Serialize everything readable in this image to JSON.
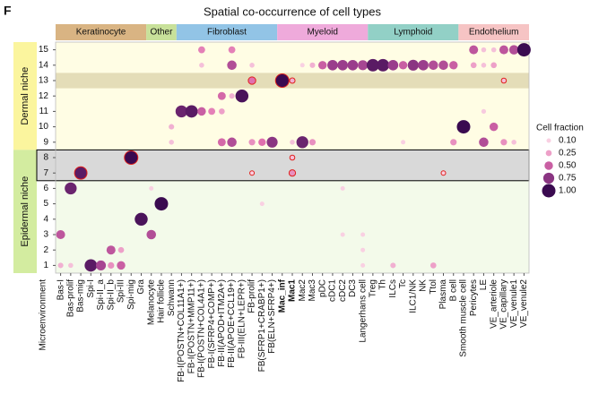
{
  "chart_data": {
    "type": "dot",
    "panel_label": "F",
    "title": "Spatial co-occurrence of cell types",
    "x_label": "Microenvironment",
    "categories": [
      "Bas-I",
      "Bas-prolif",
      "Bas-mig",
      "Spi-I",
      "Spi-II_a",
      "Spi-II_b",
      "Spi-III",
      "Spi-mig",
      "Gra",
      "Melanocyte",
      "Hair follicle",
      "Schwann",
      "FB-I(POSTN+COL11A1+)",
      "FB-I(POSTN+MMP11+)",
      "FB-I(POSTN+COL4A1+)",
      "FB-I(SFRP4+COMP+)",
      "FB-II(APOD+ITM2A+)",
      "FB-II(APOE+CCL19+)",
      "FB-III(ELN+LEPR+)",
      "FB-prolif",
      "FB(SFRP1+CRABP1+)",
      "FB(ELN+SFRP4+)",
      "Mac_inf",
      "Mac1",
      "Mac2",
      "Mac3",
      "pDC",
      "cDC1",
      "cDC2",
      "DC3",
      "Langerhans cell",
      "Treg",
      "Th",
      "ILCs",
      "Tc",
      "ILC1/NK",
      "NK",
      "Ttol",
      "Plasma",
      "B cell",
      "Smooth muscle cell",
      "Pericytes",
      "LE",
      "VE_arteriole",
      "VE_capillary",
      "VE_venule1",
      "VE_venule2"
    ],
    "bold_categories": [
      "Mac_inf",
      "Mac1"
    ],
    "groups": [
      {
        "label": "Keratinocyte",
        "from": "Bas-I",
        "to": "Gra",
        "color": "#d9b483"
      },
      {
        "label": "Other",
        "from": "Melanocyte",
        "to": "Schwann",
        "color": "#c8e19a"
      },
      {
        "label": "Fibroblast",
        "from": "FB-I(POSTN+COL11A1+)",
        "to": "FB(ELN+SFRP4+)",
        "color": "#92c4e6"
      },
      {
        "label": "Myeloid",
        "from": "Mac_inf",
        "to": "Langerhans cell",
        "color": "#efaadb"
      },
      {
        "label": "Lymphoid",
        "from": "Treg",
        "to": "B cell",
        "color": "#92d0c6"
      },
      {
        "label": "Endothelium",
        "from": "Smooth muscle cell",
        "to": "VE_venule2",
        "color": "#f6c4c4"
      }
    ],
    "niches": [
      {
        "label": "Dermal niche",
        "rows": [
          9,
          15
        ],
        "color": "#fbf59e",
        "background": "#fffde4"
      },
      {
        "label": "Epidermal niche",
        "rows": [
          1,
          8
        ],
        "color": "#d3eca0",
        "background": "#f3faea"
      }
    ],
    "highlight_bands": [
      {
        "rows": [
          13,
          13
        ],
        "color": "#e4ddb8",
        "border": false
      },
      {
        "rows": [
          7,
          8
        ],
        "color": "#d9d9d9",
        "border": true,
        "label_color": "#e0201b"
      }
    ],
    "ylim": [
      0.5,
      15.5
    ],
    "yticks": [
      1,
      2,
      3,
      4,
      5,
      6,
      7,
      8,
      9,
      10,
      11,
      12,
      13,
      14,
      15
    ],
    "legend_title": "Cell fraction",
    "legend_ticks": [
      {
        "value": 0.1,
        "label": "0.10"
      },
      {
        "value": 0.25,
        "label": "0.25"
      },
      {
        "value": 0.5,
        "label": "0.50"
      },
      {
        "value": 0.75,
        "label": "0.75"
      },
      {
        "value": 1.0,
        "label": "1.00"
      }
    ],
    "color_scale": [
      "#f9d0e2",
      "#e070ae",
      "#9a3d8c",
      "#3a0a50"
    ],
    "outline_color": "#e0201b",
    "points": [
      {
        "x": "FB-I(POSTN+COL4A1+)",
        "y": 15,
        "fraction": 0.35
      },
      {
        "x": "FB-II(APOE+CCL19+)",
        "y": 15,
        "fraction": 0.35
      },
      {
        "x": "Pericytes",
        "y": 15,
        "fraction": 0.55
      },
      {
        "x": "LE",
        "y": 15,
        "fraction": 0.15
      },
      {
        "x": "VE_arteriole",
        "y": 15,
        "fraction": 0.15
      },
      {
        "x": "VE_capillary",
        "y": 15,
        "fraction": 0.55
      },
      {
        "x": "VE_venule1",
        "y": 15,
        "fraction": 0.6
      },
      {
        "x": "VE_venule2",
        "y": 15,
        "fraction": 1.0
      },
      {
        "x": "FB-I(POSTN+COL4A1+)",
        "y": 14,
        "fraction": 0.15
      },
      {
        "x": "FB-II(APOE+CCL19+)",
        "y": 14,
        "fraction": 0.6
      },
      {
        "x": "FB-prolif",
        "y": 14,
        "fraction": 0.15
      },
      {
        "x": "Mac2",
        "y": 14,
        "fraction": 0.1
      },
      {
        "x": "Mac3",
        "y": 14,
        "fraction": 0.2
      },
      {
        "x": "pDC",
        "y": 14,
        "fraction": 0.5
      },
      {
        "x": "cDC1",
        "y": 14,
        "fraction": 0.7
      },
      {
        "x": "cDC2",
        "y": 14,
        "fraction": 0.7
      },
      {
        "x": "DC3",
        "y": 14,
        "fraction": 0.7
      },
      {
        "x": "Langerhans cell",
        "y": 14,
        "fraction": 0.65
      },
      {
        "x": "Treg",
        "y": 14,
        "fraction": 0.9
      },
      {
        "x": "Th",
        "y": 14,
        "fraction": 0.9
      },
      {
        "x": "ILCs",
        "y": 14,
        "fraction": 0.7
      },
      {
        "x": "Tc",
        "y": 14,
        "fraction": 0.5
      },
      {
        "x": "ILC1/NK",
        "y": 14,
        "fraction": 0.75
      },
      {
        "x": "NK",
        "y": 14,
        "fraction": 0.7
      },
      {
        "x": "Ttol",
        "y": 14,
        "fraction": 0.6
      },
      {
        "x": "Plasma",
        "y": 14,
        "fraction": 0.6
      },
      {
        "x": "B cell",
        "y": 14,
        "fraction": 0.5
      },
      {
        "x": "Pericytes",
        "y": 14,
        "fraction": 0.25
      },
      {
        "x": "LE",
        "y": 14,
        "fraction": 0.15
      },
      {
        "x": "VE_arteriole",
        "y": 14,
        "fraction": 0.25
      },
      {
        "x": "FB-prolif",
        "y": 13,
        "fraction": 0.4,
        "outlined": true
      },
      {
        "x": "Mac_inf",
        "y": 13,
        "fraction": 1.0,
        "outlined": true
      },
      {
        "x": "Mac1",
        "y": 13,
        "fraction": 0.2,
        "outlined": true
      },
      {
        "x": "VE_capillary",
        "y": 13,
        "fraction": 0.15,
        "outlined": true
      },
      {
        "x": "FB-II(APOD+ITM2A+)",
        "y": 12,
        "fraction": 0.45
      },
      {
        "x": "FB-II(APOE+CCL19+)",
        "y": 12,
        "fraction": 0.2
      },
      {
        "x": "FB-III(ELN+LEPR+)",
        "y": 12,
        "fraction": 0.95
      },
      {
        "x": "FB-I(POSTN+COL11A1+)",
        "y": 11,
        "fraction": 0.85
      },
      {
        "x": "FB-I(POSTN+MMP11+)",
        "y": 11,
        "fraction": 0.9
      },
      {
        "x": "FB-I(POSTN+COL4A1+)",
        "y": 11,
        "fraction": 0.5
      },
      {
        "x": "FB-I(SFRP4+COMP+)",
        "y": 11,
        "fraction": 0.35
      },
      {
        "x": "FB-II(APOD+ITM2A+)",
        "y": 11,
        "fraction": 0.25
      },
      {
        "x": "LE",
        "y": 11,
        "fraction": 0.12
      },
      {
        "x": "Schwann",
        "y": 10,
        "fraction": 0.2
      },
      {
        "x": "Smooth muscle cell",
        "y": 10,
        "fraction": 1.0
      },
      {
        "x": "VE_arteriole",
        "y": 10,
        "fraction": 0.5
      },
      {
        "x": "Schwann",
        "y": 9,
        "fraction": 0.15
      },
      {
        "x": "FB-II(APOD+ITM2A+)",
        "y": 9,
        "fraction": 0.45
      },
      {
        "x": "FB-II(APOE+CCL19+)",
        "y": 9,
        "fraction": 0.6
      },
      {
        "x": "FB-prolif",
        "y": 9,
        "fraction": 0.3
      },
      {
        "x": "FB(SFRP1+CRABP1+)",
        "y": 9,
        "fraction": 0.4
      },
      {
        "x": "FB(ELN+SFRP4+)",
        "y": 9,
        "fraction": 0.75
      },
      {
        "x": "Mac1",
        "y": 9,
        "fraction": 0.15
      },
      {
        "x": "Mac2",
        "y": 9,
        "fraction": 0.85
      },
      {
        "x": "Mac3",
        "y": 9,
        "fraction": 0.3
      },
      {
        "x": "Tc",
        "y": 9,
        "fraction": 0.1
      },
      {
        "x": "B cell",
        "y": 9,
        "fraction": 0.3
      },
      {
        "x": "LE",
        "y": 9,
        "fraction": 0.6
      },
      {
        "x": "VE_capillary",
        "y": 9,
        "fraction": 0.3
      },
      {
        "x": "VE_venule1",
        "y": 9,
        "fraction": 0.15
      },
      {
        "x": "Spi-mig",
        "y": 8,
        "fraction": 1.0,
        "outlined": true
      },
      {
        "x": "Mac1",
        "y": 8,
        "fraction": 0.15,
        "outlined": true
      },
      {
        "x": "Bas-mig",
        "y": 7,
        "fraction": 0.9,
        "outlined": true
      },
      {
        "x": "FB-prolif",
        "y": 7,
        "fraction": 0.1,
        "outlined": true
      },
      {
        "x": "Mac1",
        "y": 7,
        "fraction": 0.3,
        "outlined": true
      },
      {
        "x": "Plasma",
        "y": 7,
        "fraction": 0.1,
        "outlined": true
      },
      {
        "x": "Bas-prolif",
        "y": 6,
        "fraction": 0.85
      },
      {
        "x": "Melanocyte",
        "y": 6,
        "fraction": 0.1
      },
      {
        "x": "cDC2",
        "y": 6,
        "fraction": 0.1
      },
      {
        "x": "Hair follicle",
        "y": 5,
        "fraction": 1.0
      },
      {
        "x": "FB(SFRP1+CRABP1+)",
        "y": 5,
        "fraction": 0.1
      },
      {
        "x": "Gra",
        "y": 4,
        "fraction": 0.95
      },
      {
        "x": "Bas-I",
        "y": 3,
        "fraction": 0.55
      },
      {
        "x": "Melanocyte",
        "y": 3,
        "fraction": 0.6
      },
      {
        "x": "cDC2",
        "y": 3,
        "fraction": 0.1
      },
      {
        "x": "Langerhans cell",
        "y": 3,
        "fraction": 0.1
      },
      {
        "x": "Spi-II_b",
        "y": 2,
        "fraction": 0.55
      },
      {
        "x": "Spi-III",
        "y": 2,
        "fraction": 0.25
      },
      {
        "x": "Langerhans cell",
        "y": 2,
        "fraction": 0.1
      },
      {
        "x": "Bas-I",
        "y": 1,
        "fraction": 0.2
      },
      {
        "x": "Bas-prolif",
        "y": 1,
        "fraction": 0.15
      },
      {
        "x": "Spi-I",
        "y": 1,
        "fraction": 0.9
      },
      {
        "x": "Spi-II_a",
        "y": 1,
        "fraction": 0.65
      },
      {
        "x": "Spi-II_b",
        "y": 1,
        "fraction": 0.3
      },
      {
        "x": "Spi-III",
        "y": 1,
        "fraction": 0.5
      },
      {
        "x": "Langerhans cell",
        "y": 1,
        "fraction": 0.1
      },
      {
        "x": "ILCs",
        "y": 1,
        "fraction": 0.2
      },
      {
        "x": "Ttol",
        "y": 1,
        "fraction": 0.25
      }
    ]
  }
}
